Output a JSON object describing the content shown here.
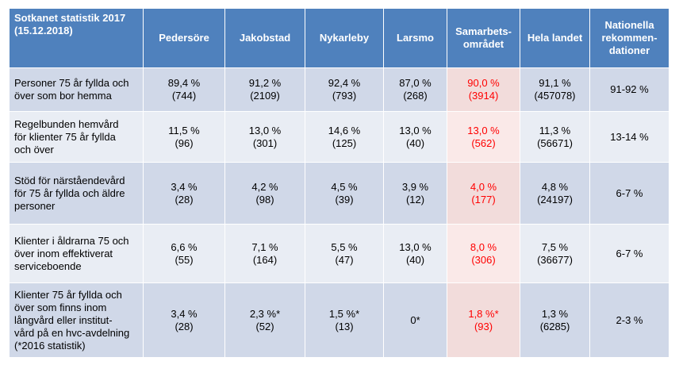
{
  "chart_data": {
    "type": "table",
    "corner_header": [
      "Sotkanet statistik 2017",
      "(15.12.2018)"
    ],
    "columns": [
      {
        "lines": [
          "Pedersöre"
        ]
      },
      {
        "lines": [
          "Jakobstad"
        ]
      },
      {
        "lines": [
          "Nykarleby"
        ]
      },
      {
        "lines": [
          "Larsmo"
        ]
      },
      {
        "lines": [
          "Samarbets-",
          "området"
        ],
        "highlight": true
      },
      {
        "lines": [
          "Hela landet"
        ]
      },
      {
        "lines": [
          "Nationella",
          "rekommen-",
          "dationer"
        ]
      }
    ],
    "rows": [
      {
        "label": [
          "Personer 75 år fyllda och",
          "över som bor hemma"
        ],
        "cells": [
          [
            "89,4 %",
            "(744)"
          ],
          [
            "91,2 %",
            "(2109)"
          ],
          [
            "92,4 %",
            "(793)"
          ],
          [
            "87,0 %",
            "(268)"
          ],
          [
            "90,0 %",
            "(3914)"
          ],
          [
            "91,1 %",
            "(457078)"
          ],
          [
            "91-92 %"
          ]
        ]
      },
      {
        "label": [
          "Regelbunden hemvård",
          "för klienter 75 år fyllda",
          "och över"
        ],
        "cells": [
          [
            "11,5 %",
            "(96)"
          ],
          [
            "13,0 %",
            "(301)"
          ],
          [
            "14,6 %",
            "(125)"
          ],
          [
            "13,0 %",
            "(40)"
          ],
          [
            "13,0 %",
            "(562)"
          ],
          [
            "11,3 %",
            "(56671)"
          ],
          [
            "13-14 %"
          ]
        ]
      },
      {
        "label": [
          "Stöd för närståendevård",
          "för 75 år fyllda och äldre",
          "personer"
        ],
        "cells": [
          [
            "3,4 %",
            "(28)"
          ],
          [
            "4,2 %",
            "(98)"
          ],
          [
            "4,5 %",
            "(39)"
          ],
          [
            "3,9 %",
            "(12)"
          ],
          [
            "4,0 %",
            "(177)"
          ],
          [
            "4,8 %",
            "(24197)"
          ],
          [
            "6-7 %"
          ]
        ]
      },
      {
        "label": [
          "Klienter i åldrarna 75 och",
          "över inom effektiverat",
          "serviceboende"
        ],
        "cells": [
          [
            "6,6 %",
            "(55)"
          ],
          [
            "7,1 %",
            "(164)"
          ],
          [
            "5,5 %",
            "(47)"
          ],
          [
            "13,0 %",
            "(40)"
          ],
          [
            "8,0 %",
            "(306)"
          ],
          [
            "7,5 %",
            "(36677)"
          ],
          [
            "6-7 %"
          ]
        ]
      },
      {
        "label": [
          "Klienter 75 år fyllda och",
          "över som finns inom",
          "långvård eller institut-",
          "vård på en hvc-avdelning",
          "(*2016 statistik)"
        ],
        "cells": [
          [
            "3,4 %",
            "(28)"
          ],
          [
            "2,3 %*",
            "(52)"
          ],
          [
            "1,5 %*",
            "(13)"
          ],
          [
            "0*"
          ],
          [
            "1,8 %*",
            "(93)"
          ],
          [
            "1,3 %",
            "(6285)"
          ],
          [
            "2-3 %"
          ]
        ]
      }
    ],
    "colors": {
      "header_bg": "#4f81bd",
      "row_odd_bg": "#d0d8e8",
      "row_even_bg": "#e9edf4",
      "highlight_text": "#ff0000",
      "highlight_bg": "#f2dcdb"
    }
  }
}
